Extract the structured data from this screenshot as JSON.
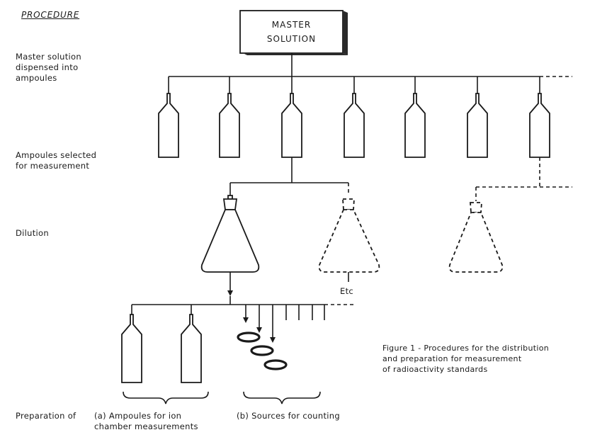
{
  "heading": "PROCEDURE",
  "master_box": "MASTER\nSOLUTION",
  "steps": {
    "dispensed": "Master solution\ndispensed into\nampoules",
    "selected": "Ampoules selected\nfor measurement",
    "dilution": "Dilution",
    "preparation": "Preparation of"
  },
  "etc_label": "Etc",
  "outputs": {
    "a": "(a)   Ampoules for ion\n        chamber measurements",
    "b": "(b) Sources for counting"
  },
  "caption": "Figure 1 - Procedures for the distribution\n               and preparation for measurement\n               of radioactivity standards"
}
